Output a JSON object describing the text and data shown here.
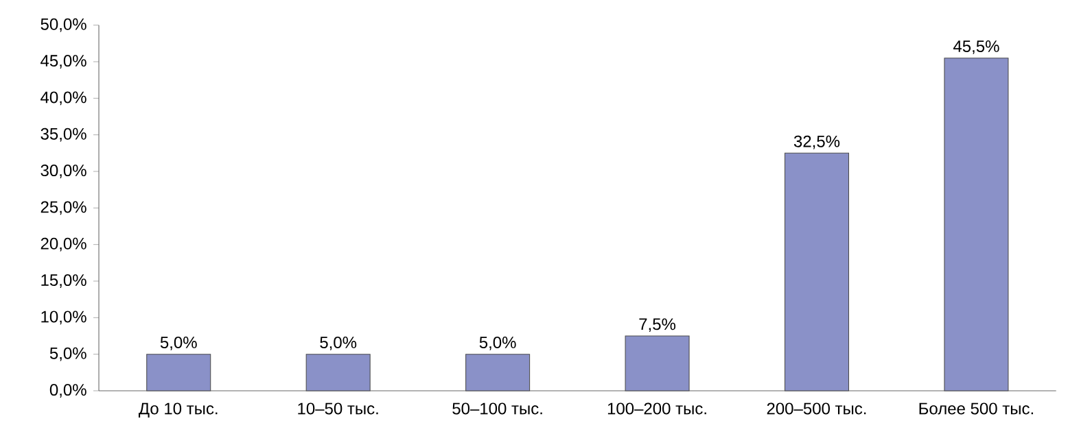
{
  "chart_data": {
    "type": "bar",
    "categories": [
      "До 10 тыс.",
      "10–50 тыс.",
      "50–100 тыс.",
      "100–200 тыс.",
      "200–500 тыс.",
      "Более 500 тыс."
    ],
    "values": [
      5.0,
      5.0,
      5.0,
      7.5,
      32.5,
      45.5
    ],
    "value_labels": [
      "5,0%",
      "5,0%",
      "5,0%",
      "7,5%",
      "32,5%",
      "45,5%"
    ],
    "color": "#8a91c8",
    "ylim": [
      0,
      50
    ],
    "yticks": [
      {
        "value": 0,
        "label": "0,0%"
      },
      {
        "value": 5,
        "label": "5,0%"
      },
      {
        "value": 10,
        "label": "10,0%"
      },
      {
        "value": 15,
        "label": "15,0%"
      },
      {
        "value": 20,
        "label": "20,0%"
      },
      {
        "value": 25,
        "label": "25,0%"
      },
      {
        "value": 30,
        "label": "30,0%"
      },
      {
        "value": 35,
        "label": "35,0%"
      },
      {
        "value": 40,
        "label": "40,0%"
      },
      {
        "value": 45,
        "label": "45,0%"
      },
      {
        "value": 50,
        "label": "50,0%"
      }
    ]
  }
}
